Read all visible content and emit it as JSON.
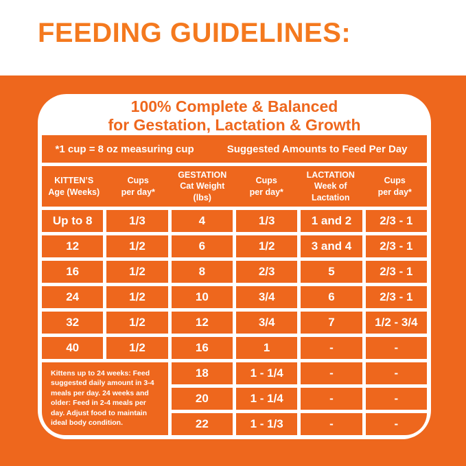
{
  "heading": "FEEDING GUIDELINES:",
  "colors": {
    "brand_orange": "#EE671D",
    "heading_orange": "#F4791E",
    "text_white": "#FFFFFF"
  },
  "panel": {
    "title_line1": "100% Complete & Balanced",
    "title_line2": "for Gestation, Lactation & Growth",
    "measure_note": "*1 cup = 8 oz measuring cup",
    "suggested_note": "Suggested Amounts to Feed Per Day"
  },
  "table": {
    "headers": [
      {
        "lines": [
          "KITTEN’S",
          "Age (Weeks)"
        ]
      },
      {
        "lines": [
          "Cups",
          "per day*"
        ]
      },
      {
        "lines": [
          "GESTATION",
          "Cat Weight (lbs)"
        ]
      },
      {
        "lines": [
          "Cups",
          "per day*"
        ]
      },
      {
        "lines": [
          "LACTATION",
          "Week of",
          "Lactation"
        ]
      },
      {
        "lines": [
          "Cups",
          "per day*"
        ]
      }
    ],
    "rows": [
      [
        "Up to 8",
        "1/3",
        "4",
        "1/3",
        "1 and 2",
        "2/3 - 1"
      ],
      [
        "12",
        "1/2",
        "6",
        "1/2",
        "3 and 4",
        "2/3 - 1"
      ],
      [
        "16",
        "1/2",
        "8",
        "2/3",
        "5",
        "2/3 - 1"
      ],
      [
        "24",
        "1/2",
        "10",
        "3/4",
        "6",
        "2/3 - 1"
      ],
      [
        "32",
        "1/2",
        "12",
        "3/4",
        "7",
        "1/2 - 3/4"
      ],
      [
        "40",
        "1/2",
        "16",
        "1",
        "-",
        "-"
      ]
    ],
    "bottom": {
      "note": "Kittens up to 24 weeks: Feed suggested daily amount in 3-4 meals per day. 24 weeks and older: Feed in 2-4 meals per day. Adjust food to maintain ideal body condition.",
      "rows": [
        [
          "18",
          "1 - 1/4",
          "-",
          "-"
        ],
        [
          "20",
          "1 - 1/4",
          "-",
          "-"
        ],
        [
          "22",
          "1 - 1/3",
          "-",
          "-"
        ]
      ]
    }
  }
}
